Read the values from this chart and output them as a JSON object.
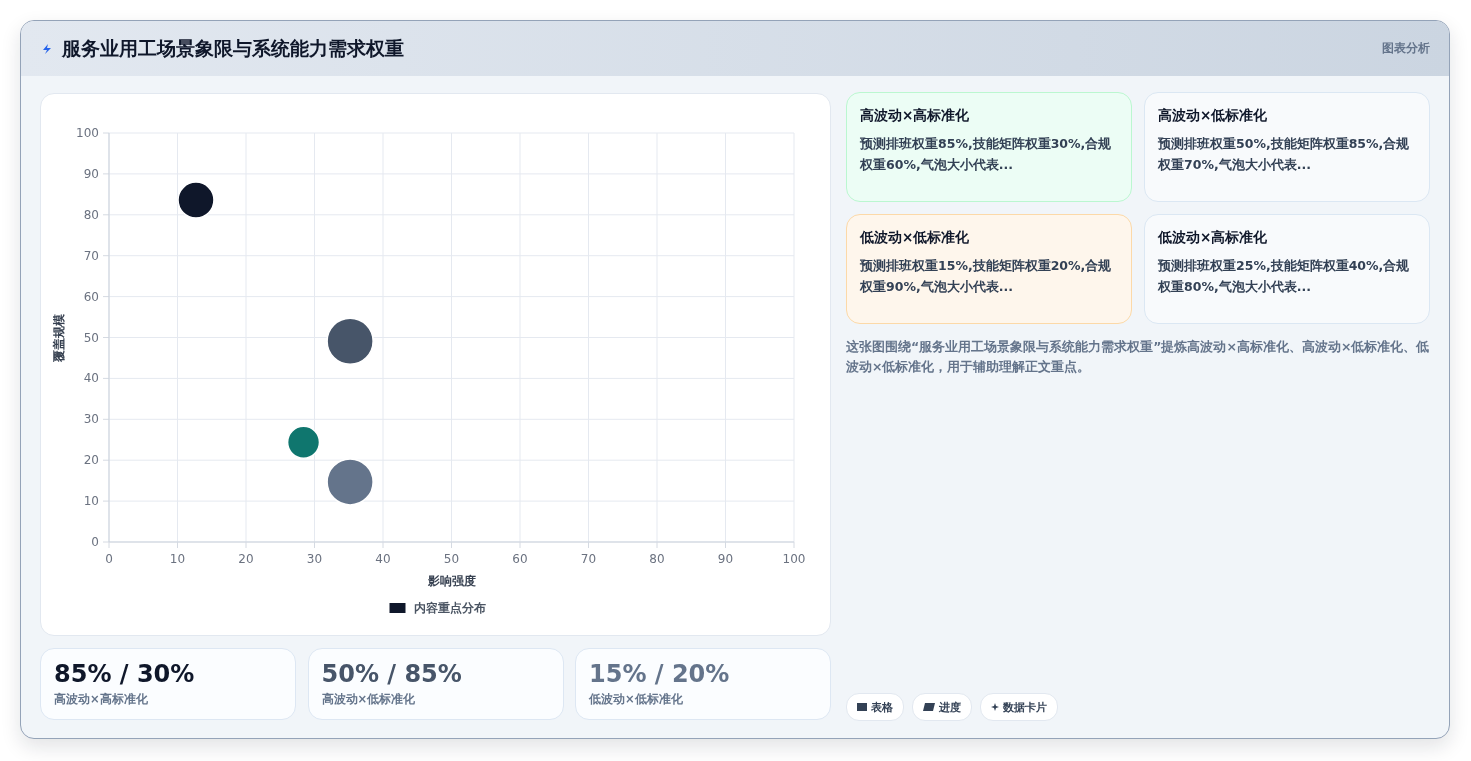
{
  "chart_data": [
    {
      "type": "bubble",
      "title": "服务业用工场景象限与系统能力需求权重",
      "xlabel": "影响强度",
      "ylabel": "覆盖规模",
      "x": [
        12.7,
        35.2,
        28.4,
        35.2
      ],
      "series": [
        {
          "name": "内容重点分布",
          "color": "#0f172a",
          "colors": [
            "#0f172a",
            "#475569",
            "#0f766e",
            "#64748b"
          ],
          "values": [
            83.6,
            49.1,
            24.4,
            14.7
          ],
          "sizes": [
            0.61,
            1,
            0.48,
            1
          ]
        }
      ],
      "xlim": [
        0,
        100
      ],
      "xticks": [
        0,
        10,
        20,
        30,
        40,
        50,
        60,
        70,
        80,
        90,
        100
      ],
      "ylim": [
        0,
        100
      ],
      "yticks": [
        0,
        10,
        20,
        30,
        40,
        50,
        60,
        70,
        80,
        90,
        100
      ],
      "grid": true,
      "legend": "bottom"
    },
    {
      "type": "other",
      "annotations": [
        "图表分析",
        "高波动×高标准化",
        "预测排班权重85%,技能矩阵权重30%,合规权重60%,气泡大小代表...",
        "高波动×低标准化",
        "预测排班权重50%,技能矩阵权重85%,合规权重70%,气泡大小代表...",
        "低波动×低标准化",
        "预测排班权重15%,技能矩阵权重20%,合规权重90%,气泡大小代表...",
        "低波动×高标准化",
        "预测排班权重25%,技能矩阵权重40%,合规权重80%,气泡大小代表...",
        "这张图围绕“服务业用工场景象限与系统能力需求权重”提炼高波动×高标准化、高波动×低标准化、低波动×低标准化，用于辅助理解正文重点。",
        "85% / 30%",
        "高波动×高标准化",
        "50% / 85%",
        "高波动×低标准化",
        "15% / 20%",
        "低波动×低标准化",
        "表格",
        "进度",
        "数据卡片"
      ]
    }
  ]
}
